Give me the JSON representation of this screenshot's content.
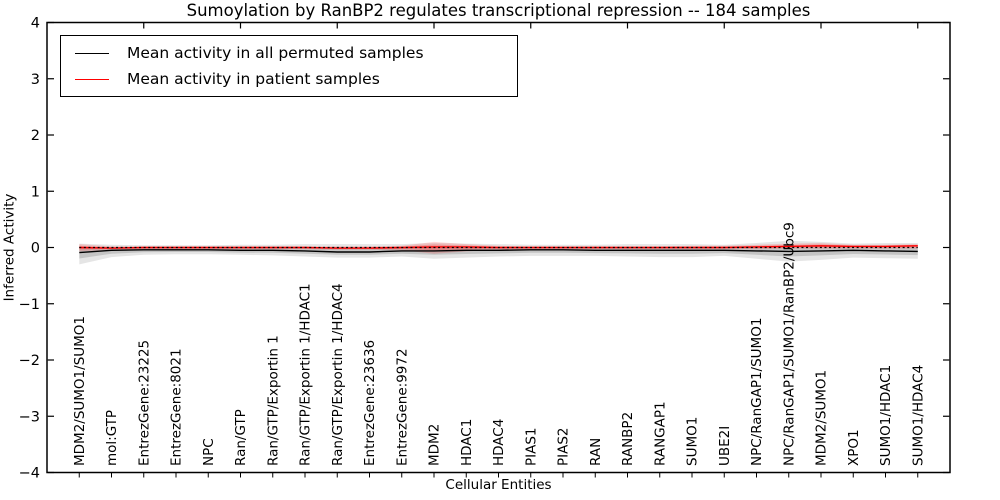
{
  "chart_data": {
    "type": "line",
    "title": "Sumoylation by RanBP2 regulates transcriptional repression -- 184 samples",
    "xlabel": "Cellular Entities",
    "ylabel": "Inferred Activity",
    "ylim": [
      -4,
      4
    ],
    "ytick_values": [
      4,
      3,
      2,
      1,
      0,
      -1,
      -2,
      -3,
      -4
    ],
    "ytick_labels": [
      "4",
      "3",
      "2",
      "1",
      "0",
      "−1",
      "−2",
      "−3",
      "−4"
    ],
    "grid": false,
    "legend_position": "upper left",
    "zero_reference_line": 0,
    "categories": [
      "MDM2/SUMO1/SUMO1",
      "mol:GTP",
      "EntrezGene:23225",
      "EntrezGene:8021",
      "NPC",
      "Ran/GTP",
      "Ran/GTP/Exportin 1",
      "Ran/GTP/Exportin 1/HDAC1",
      "Ran/GTP/Exportin 1/HDAC4",
      "EntrezGene:23636",
      "EntrezGene:9972",
      "MDM2",
      "HDAC1",
      "HDAC4",
      "PIAS1",
      "PIAS2",
      "RAN",
      "RANBP2",
      "RANGAP1",
      "SUMO1",
      "UBE2I",
      "NPC/RanGAP1/SUMO1",
      "NPC/RanGAP1/SUMO1/RanBP2/Ubc9",
      "MDM2/SUMO1",
      "XPO1",
      "SUMO1/HDAC1",
      "SUMO1/HDAC4"
    ],
    "series": [
      {
        "name": "Mean activity in all permuted samples",
        "color": "#000000",
        "band_color": "#000000",
        "values": [
          -0.09,
          -0.05,
          -0.04,
          -0.04,
          -0.04,
          -0.05,
          -0.05,
          -0.06,
          -0.08,
          -0.08,
          -0.06,
          -0.06,
          -0.05,
          -0.05,
          -0.04,
          -0.04,
          -0.05,
          -0.05,
          -0.05,
          -0.05,
          -0.05,
          -0.06,
          -0.07,
          -0.06,
          -0.05,
          -0.06,
          -0.07
        ],
        "band_upper": [
          0.07,
          0.05,
          0.04,
          0.04,
          0.04,
          0.05,
          0.05,
          0.06,
          0.06,
          0.06,
          0.06,
          0.08,
          0.07,
          0.06,
          0.05,
          0.05,
          0.05,
          0.06,
          0.06,
          0.06,
          0.05,
          0.08,
          0.12,
          0.1,
          0.07,
          0.08,
          0.08
        ],
        "band_lower": [
          -0.3,
          -0.17,
          -0.13,
          -0.12,
          -0.12,
          -0.13,
          -0.14,
          -0.16,
          -0.18,
          -0.18,
          -0.16,
          -0.2,
          -0.18,
          -0.16,
          -0.15,
          -0.15,
          -0.15,
          -0.16,
          -0.17,
          -0.17,
          -0.15,
          -0.2,
          -0.25,
          -0.22,
          -0.18,
          -0.19,
          -0.2
        ]
      },
      {
        "name": "Mean activity in patient samples",
        "color": "#ff0000",
        "band_color": "#ff0000",
        "values": [
          0.0,
          -0.01,
          0.0,
          0.0,
          0.0,
          0.0,
          0.0,
          0.0,
          -0.01,
          -0.01,
          0.0,
          0.01,
          0.01,
          0.0,
          0.0,
          0.0,
          0.0,
          0.0,
          0.0,
          0.0,
          0.0,
          0.01,
          0.02,
          0.03,
          0.02,
          0.02,
          0.03
        ],
        "band_upper": [
          0.06,
          0.02,
          0.02,
          0.02,
          0.02,
          0.02,
          0.02,
          0.02,
          0.02,
          0.02,
          0.03,
          0.1,
          0.06,
          0.03,
          0.02,
          0.02,
          0.02,
          0.02,
          0.02,
          0.03,
          0.03,
          0.05,
          0.07,
          0.08,
          0.05,
          0.05,
          0.06
        ],
        "band_lower": [
          -0.07,
          -0.04,
          -0.03,
          -0.03,
          -0.03,
          -0.03,
          -0.03,
          -0.03,
          -0.04,
          -0.04,
          -0.05,
          -0.11,
          -0.07,
          -0.04,
          -0.03,
          -0.03,
          -0.03,
          -0.03,
          -0.03,
          -0.03,
          -0.03,
          -0.03,
          -0.02,
          -0.02,
          -0.02,
          -0.02,
          -0.02
        ]
      }
    ]
  }
}
